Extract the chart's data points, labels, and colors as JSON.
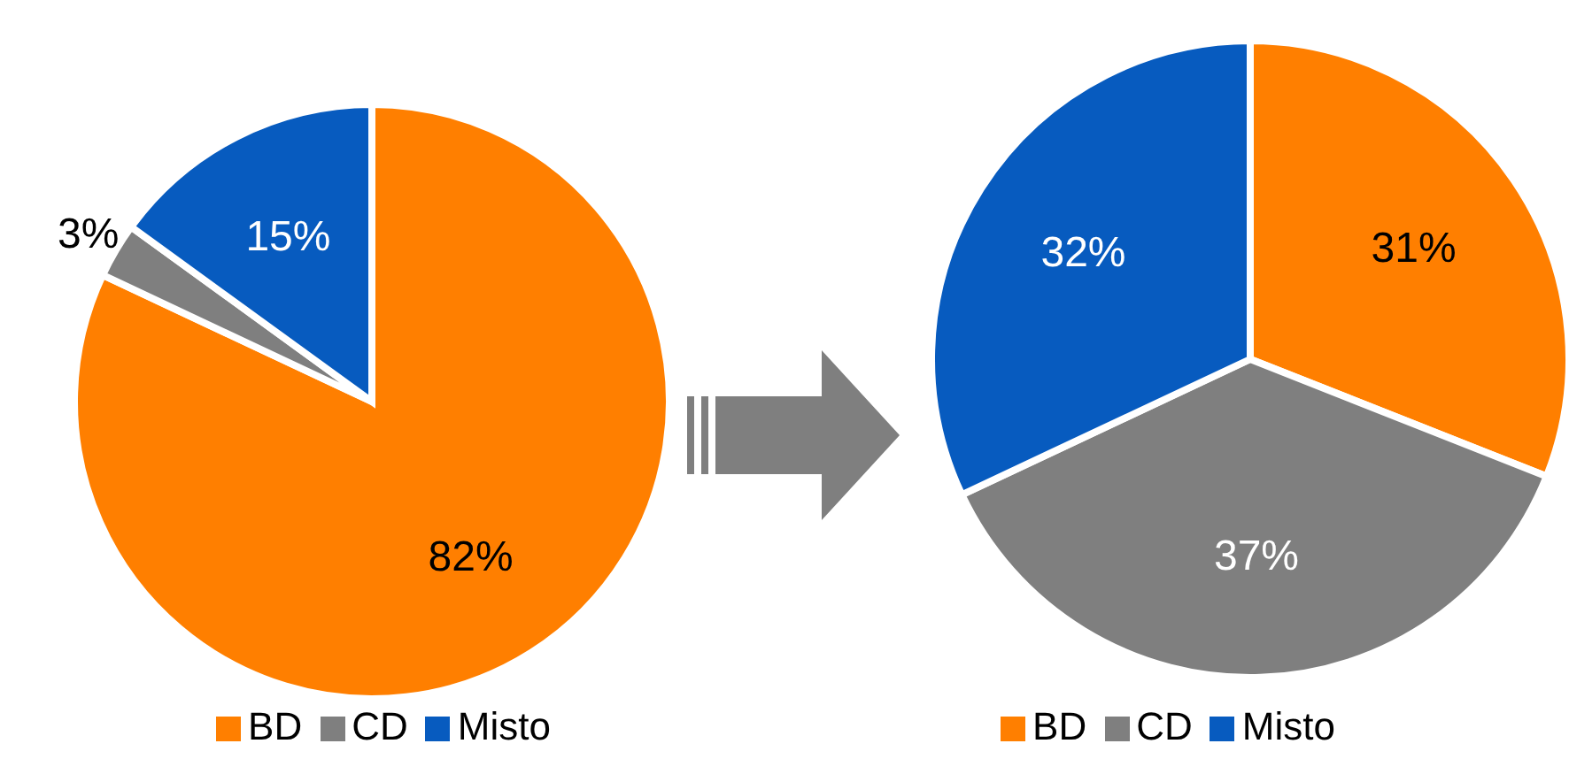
{
  "chart_data": [
    {
      "type": "pie",
      "categories": [
        "BD",
        "CD",
        "Misto"
      ],
      "values": [
        82,
        3,
        15
      ],
      "value_labels": [
        "82%",
        "3%",
        "15%"
      ],
      "colors": [
        "#ff7f00",
        "#7f7f7f",
        "#075bbf"
      ],
      "legend": "bottom"
    },
    {
      "type": "pie",
      "categories": [
        "BD",
        "CD",
        "Misto"
      ],
      "values": [
        31,
        37,
        32
      ],
      "value_labels": [
        "31%",
        "37%",
        "32%"
      ],
      "colors": [
        "#ff7f00",
        "#7f7f7f",
        "#075bbf"
      ],
      "legend": "bottom"
    }
  ]
}
